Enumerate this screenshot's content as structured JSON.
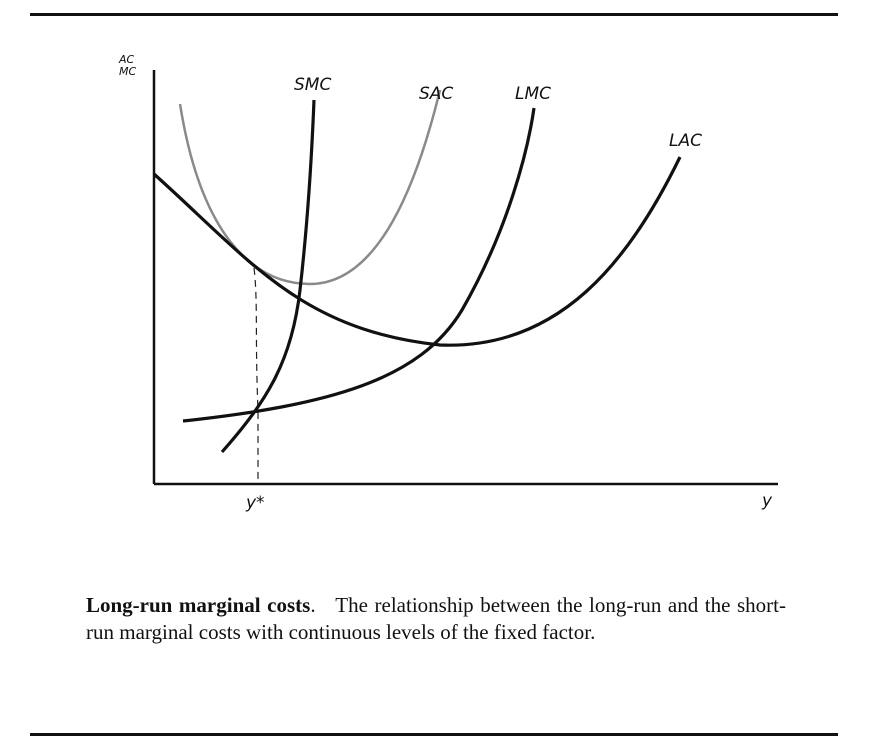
{
  "diagram": {
    "axes": {
      "y_label_line1": "AC",
      "y_label_line2": "MC",
      "x_label": "y",
      "x_marker": "y*"
    },
    "curves": {
      "smc": "SMC",
      "sac": "SAC",
      "lmc": "LMC",
      "lac": "LAC"
    }
  },
  "caption": {
    "title": "Long-run marginal costs",
    "separator": ".",
    "body": "The relationship between the long-run and the short-run marginal costs with continuous levels of the fixed factor."
  }
}
